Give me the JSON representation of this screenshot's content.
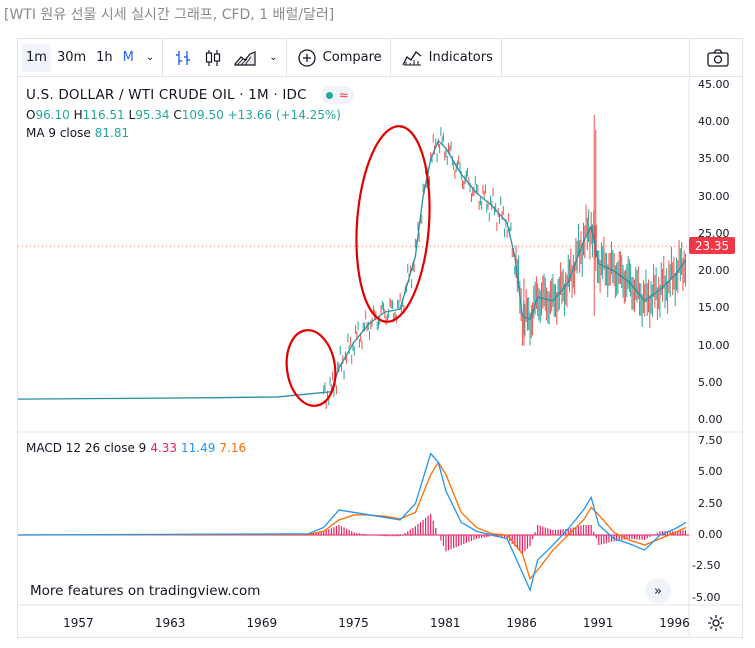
{
  "page_title": "[WTI 원유 선물 시세 실시간 그래프, CFD, 1 배럴/달러]",
  "toolbar": {
    "intervals": [
      "1m",
      "30m",
      "1h",
      "M"
    ],
    "compare_label": "Compare",
    "indicators_label": "Indicators"
  },
  "symbol": {
    "name": "U.S. DOLLAR / WTI CRUDE OIL · 1M · IDC",
    "open_label": "O",
    "open": "96.10",
    "high_label": "H",
    "high": "116.51",
    "low_label": "L",
    "low": "95.34",
    "close_label": "C",
    "close": "109.50",
    "change": "+13.66 (+14.25%)"
  },
  "ma": {
    "label": "MA 9 close",
    "value": "81.81"
  },
  "macd": {
    "label": "MACD 12 26 close 9",
    "hist": "4.33",
    "macd": "11.49",
    "signal": "7.16"
  },
  "last_price": "23.35",
  "footer": {
    "more_features": "More features on tradingview.com"
  },
  "colors": {
    "up": "#26a69a",
    "down": "#ef5350",
    "ma": "#2a8fa3",
    "macd": "#2196f3",
    "signal": "#ff6d00",
    "hist": "#e91e63",
    "annotation": "#e00000"
  },
  "icons": {
    "camera": "camera-icon",
    "compare": "plus-circle-icon",
    "indicators": "indicators-icon",
    "settings": "gear-icon",
    "scroll": "double-chevron-right-icon"
  },
  "chart_data": [
    {
      "type": "line",
      "title": "U.S. DOLLAR / WTI CRUDE OIL · 1M · IDC",
      "x_tick_labels": [
        "1957",
        "1963",
        "1969",
        "1975",
        "1981",
        "1986",
        "1991",
        "1996"
      ],
      "y_tick_labels": [
        "45.00",
        "40.00",
        "35.00",
        "30.00",
        "25.00",
        "20.00",
        "15.00",
        "10.00",
        "5.00",
        "0.00"
      ],
      "ylim": [
        0,
        45
      ],
      "series": [
        {
          "name": "MA 9 close",
          "x": [
            1953,
            1960,
            1966,
            1970,
            1972,
            1973.5,
            1974,
            1975,
            1976,
            1977,
            1978,
            1979,
            1979.5,
            1980,
            1980.5,
            1981,
            1982,
            1983,
            1984,
            1985,
            1985.5,
            1986,
            1986.5,
            1987,
            1988,
            1989,
            1990,
            1990.5,
            1991,
            1992,
            1993,
            1994,
            1995,
            1996,
            1996.7
          ],
          "values": [
            2.8,
            2.9,
            3.0,
            3.1,
            3.5,
            3.8,
            7,
            10.5,
            13,
            14.5,
            14.9,
            22,
            30,
            35,
            37.5,
            36.5,
            33,
            30.5,
            28.8,
            26.5,
            22,
            14,
            13.5,
            16.5,
            16,
            18.5,
            24,
            26,
            21,
            20,
            18.5,
            16,
            17.5,
            19.5,
            21.5
          ]
        }
      ],
      "last_price": 23.35
    },
    {
      "type": "line",
      "title": "MACD 12 26 close 9",
      "y_tick_labels": [
        "7.50",
        "5.00",
        "2.50",
        "0.00",
        "-2.50",
        "-5.00"
      ],
      "ylim": [
        -5,
        7.5
      ],
      "series": [
        {
          "name": "MACD",
          "x": [
            1953,
            1972,
            1973,
            1974,
            1975,
            1976,
            1977,
            1978,
            1979,
            1980,
            1980.5,
            1981,
            1982,
            1983,
            1984,
            1985,
            1986,
            1986.5,
            1987,
            1988,
            1989,
            1990,
            1990.5,
            1991,
            1992,
            1993,
            1994,
            1995,
            1996,
            1996.7
          ],
          "values": [
            0,
            0.1,
            0.6,
            2.0,
            1.8,
            1.6,
            1.4,
            1.2,
            2.5,
            6.5,
            5.8,
            3.5,
            1.0,
            0.3,
            0,
            -0.3,
            -3.0,
            -4.4,
            -2.0,
            -0.8,
            0.5,
            2.0,
            3.0,
            0.8,
            -0.3,
            -0.7,
            -1.2,
            0,
            0.5,
            1.0
          ]
        },
        {
          "name": "Signal",
          "x": [
            1953,
            1972,
            1973,
            1974,
            1975,
            1976,
            1977,
            1978,
            1979,
            1980,
            1980.5,
            1981,
            1982,
            1983,
            1984,
            1985,
            1986,
            1986.5,
            1987,
            1988,
            1989,
            1990,
            1990.5,
            1991,
            1992,
            1993,
            1994,
            1995,
            1996,
            1996.7
          ],
          "values": [
            0,
            0.05,
            0.3,
            1.2,
            1.6,
            1.6,
            1.5,
            1.3,
            1.8,
            4.8,
            5.8,
            4.8,
            1.8,
            0.6,
            0.1,
            0,
            -1.5,
            -3.5,
            -2.8,
            -1.2,
            0,
            1.2,
            2.2,
            1.6,
            0.2,
            -0.4,
            -0.8,
            -0.3,
            0.2,
            0.6
          ]
        }
      ]
    }
  ]
}
